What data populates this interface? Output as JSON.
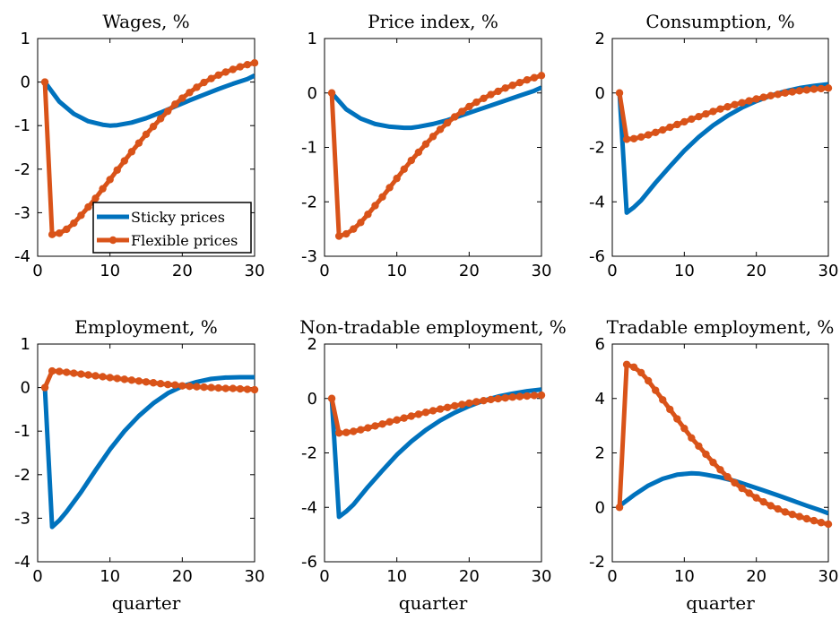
{
  "colors": {
    "sticky": "#0072BD",
    "flexible": "#D95319",
    "axis": "#000000"
  },
  "legend": {
    "panel": 0,
    "placement": "bottom-right",
    "entries": [
      "Sticky prices",
      "Flexible prices"
    ]
  },
  "chart_data": [
    {
      "type": "line",
      "title": "Wages, %",
      "xlabel": "",
      "xlim": [
        0,
        30
      ],
      "ylim": [
        -4,
        1
      ],
      "xticks": [
        0,
        10,
        20,
        30
      ],
      "yticks": [
        -4,
        -3,
        -2,
        -1,
        0,
        1
      ],
      "series": [
        {
          "name": "Sticky prices",
          "x": [
            1,
            3,
            5,
            7,
            9,
            10,
            11,
            13,
            15,
            17,
            19,
            21,
            23,
            25,
            27,
            29,
            30
          ],
          "y": [
            0,
            -0.45,
            -0.73,
            -0.9,
            -0.98,
            -1.0,
            -0.99,
            -0.93,
            -0.83,
            -0.7,
            -0.56,
            -0.42,
            -0.29,
            -0.16,
            -0.04,
            0.07,
            0.15
          ]
        },
        {
          "name": "Flexible prices",
          "x": [
            1,
            2,
            3,
            4,
            5,
            6,
            7,
            8,
            9,
            10,
            11,
            12,
            13,
            14,
            15,
            16,
            17,
            18,
            19,
            20,
            21,
            22,
            23,
            24,
            25,
            26,
            27,
            28,
            29,
            30
          ],
          "y": [
            0,
            -3.5,
            -3.47,
            -3.38,
            -3.24,
            -3.06,
            -2.87,
            -2.67,
            -2.45,
            -2.24,
            -2.02,
            -1.81,
            -1.6,
            -1.4,
            -1.2,
            -1.02,
            -0.84,
            -0.67,
            -0.51,
            -0.37,
            -0.24,
            -0.12,
            -0.01,
            0.08,
            0.16,
            0.23,
            0.29,
            0.35,
            0.4,
            0.44
          ]
        }
      ]
    },
    {
      "type": "line",
      "title": "Price index, %",
      "xlabel": "",
      "xlim": [
        0,
        30
      ],
      "ylim": [
        -3,
        1
      ],
      "xticks": [
        0,
        10,
        20,
        30
      ],
      "yticks": [
        -3,
        -2,
        -1,
        0,
        1
      ],
      "series": [
        {
          "name": "Sticky prices",
          "x": [
            1,
            3,
            5,
            7,
            9,
            11,
            12,
            13,
            15,
            17,
            19,
            21,
            23,
            25,
            27,
            29,
            30
          ],
          "y": [
            0,
            -0.3,
            -0.47,
            -0.57,
            -0.62,
            -0.64,
            -0.64,
            -0.62,
            -0.57,
            -0.5,
            -0.41,
            -0.32,
            -0.23,
            -0.14,
            -0.05,
            0.04,
            0.1
          ]
        },
        {
          "name": "Flexible prices",
          "x": [
            1,
            2,
            3,
            4,
            5,
            6,
            7,
            8,
            9,
            10,
            11,
            12,
            13,
            14,
            15,
            16,
            17,
            18,
            19,
            20,
            21,
            22,
            23,
            24,
            25,
            26,
            27,
            28,
            29,
            30
          ],
          "y": [
            0,
            -2.63,
            -2.59,
            -2.5,
            -2.38,
            -2.23,
            -2.07,
            -1.91,
            -1.74,
            -1.57,
            -1.4,
            -1.24,
            -1.09,
            -0.94,
            -0.8,
            -0.67,
            -0.55,
            -0.44,
            -0.34,
            -0.25,
            -0.17,
            -0.1,
            -0.03,
            0.03,
            0.09,
            0.14,
            0.19,
            0.24,
            0.28,
            0.32
          ]
        }
      ]
    },
    {
      "type": "line",
      "title": "Consumption, %",
      "xlabel": "",
      "xlim": [
        0,
        30
      ],
      "ylim": [
        -6,
        2
      ],
      "xticks": [
        0,
        10,
        20,
        30
      ],
      "yticks": [
        -6,
        -4,
        -2,
        0,
        2
      ],
      "series": [
        {
          "name": "Sticky prices",
          "x": [
            1,
            2,
            3,
            4,
            6,
            8,
            10,
            12,
            14,
            16,
            18,
            20,
            22,
            24,
            26,
            28,
            30
          ],
          "y": [
            0,
            -4.4,
            -4.2,
            -3.95,
            -3.3,
            -2.7,
            -2.12,
            -1.62,
            -1.19,
            -0.84,
            -0.54,
            -0.3,
            -0.1,
            0.06,
            0.18,
            0.26,
            0.32
          ]
        },
        {
          "name": "Flexible prices",
          "x": [
            1,
            2,
            3,
            4,
            5,
            6,
            7,
            8,
            9,
            10,
            11,
            12,
            13,
            14,
            15,
            16,
            17,
            18,
            19,
            20,
            21,
            22,
            23,
            24,
            25,
            26,
            27,
            28,
            29,
            30
          ],
          "y": [
            0,
            -1.7,
            -1.68,
            -1.62,
            -1.54,
            -1.45,
            -1.36,
            -1.26,
            -1.16,
            -1.06,
            -0.96,
            -0.87,
            -0.77,
            -0.68,
            -0.59,
            -0.51,
            -0.43,
            -0.36,
            -0.29,
            -0.22,
            -0.16,
            -0.1,
            -0.05,
            0.0,
            0.04,
            0.08,
            0.11,
            0.14,
            0.16,
            0.18
          ]
        }
      ]
    },
    {
      "type": "line",
      "title": "Employment, %",
      "xlabel": "quarter",
      "xlim": [
        0,
        30
      ],
      "ylim": [
        -4,
        1
      ],
      "xticks": [
        0,
        10,
        20,
        30
      ],
      "yticks": [
        -4,
        -3,
        -2,
        -1,
        0,
        1
      ],
      "series": [
        {
          "name": "Sticky prices",
          "x": [
            1,
            2,
            3,
            4,
            6,
            8,
            10,
            12,
            14,
            16,
            18,
            20,
            22,
            24,
            26,
            28,
            30
          ],
          "y": [
            0,
            -3.2,
            -3.05,
            -2.85,
            -2.4,
            -1.9,
            -1.42,
            -1.0,
            -0.65,
            -0.36,
            -0.13,
            0.03,
            0.13,
            0.2,
            0.23,
            0.24,
            0.24
          ]
        },
        {
          "name": "Flexible prices",
          "x": [
            1,
            2,
            3,
            4,
            5,
            6,
            7,
            8,
            9,
            10,
            11,
            12,
            13,
            14,
            15,
            16,
            17,
            18,
            19,
            20,
            21,
            22,
            23,
            24,
            25,
            26,
            27,
            28,
            29,
            30
          ],
          "y": [
            0,
            0.38,
            0.37,
            0.35,
            0.33,
            0.31,
            0.29,
            0.27,
            0.25,
            0.23,
            0.21,
            0.19,
            0.17,
            0.15,
            0.13,
            0.11,
            0.09,
            0.07,
            0.06,
            0.04,
            0.03,
            0.02,
            0.01,
            0.0,
            -0.01,
            -0.02,
            -0.02,
            -0.03,
            -0.04,
            -0.05
          ]
        }
      ]
    },
    {
      "type": "line",
      "title": "Non-tradable employment, %",
      "xlabel": "quarter",
      "xlim": [
        0,
        30
      ],
      "ylim": [
        -6,
        2
      ],
      "xticks": [
        0,
        10,
        20,
        30
      ],
      "yticks": [
        -6,
        -4,
        -2,
        0,
        2
      ],
      "series": [
        {
          "name": "Sticky prices",
          "x": [
            1,
            2,
            3,
            4,
            6,
            8,
            10,
            12,
            14,
            16,
            18,
            20,
            22,
            24,
            26,
            28,
            30
          ],
          "y": [
            0,
            -4.35,
            -4.15,
            -3.9,
            -3.25,
            -2.65,
            -2.07,
            -1.58,
            -1.16,
            -0.81,
            -0.52,
            -0.28,
            -0.08,
            0.07,
            0.18,
            0.27,
            0.33
          ]
        },
        {
          "name": "Flexible prices",
          "x": [
            1,
            2,
            3,
            4,
            5,
            6,
            7,
            8,
            9,
            10,
            11,
            12,
            13,
            14,
            15,
            16,
            17,
            18,
            19,
            20,
            21,
            22,
            23,
            24,
            25,
            26,
            27,
            28,
            29,
            30
          ],
          "y": [
            0,
            -1.27,
            -1.25,
            -1.21,
            -1.15,
            -1.08,
            -1.01,
            -0.94,
            -0.86,
            -0.79,
            -0.72,
            -0.65,
            -0.58,
            -0.51,
            -0.45,
            -0.39,
            -0.33,
            -0.27,
            -0.22,
            -0.17,
            -0.12,
            -0.08,
            -0.04,
            -0.01,
            0.02,
            0.05,
            0.07,
            0.09,
            0.11,
            0.12
          ]
        }
      ]
    },
    {
      "type": "line",
      "title": "Tradable employment, %",
      "xlabel": "quarter",
      "xlim": [
        0,
        30
      ],
      "ylim": [
        -2,
        6
      ],
      "xticks": [
        0,
        10,
        20,
        30
      ],
      "yticks": [
        -2,
        0,
        2,
        4,
        6
      ],
      "series": [
        {
          "name": "Sticky prices",
          "x": [
            1,
            3,
            5,
            7,
            9,
            11,
            12,
            13,
            15,
            17,
            19,
            21,
            23,
            25,
            27,
            29,
            30
          ],
          "y": [
            0.05,
            0.45,
            0.8,
            1.05,
            1.2,
            1.25,
            1.24,
            1.2,
            1.1,
            0.97,
            0.8,
            0.62,
            0.44,
            0.25,
            0.06,
            -0.12,
            -0.22
          ]
        },
        {
          "name": "Flexible prices",
          "x": [
            1,
            2,
            3,
            4,
            5,
            6,
            7,
            8,
            9,
            10,
            11,
            12,
            13,
            14,
            15,
            16,
            17,
            18,
            19,
            20,
            21,
            22,
            23,
            24,
            25,
            26,
            27,
            28,
            29,
            30
          ],
          "y": [
            0,
            5.25,
            5.15,
            4.95,
            4.65,
            4.3,
            3.95,
            3.6,
            3.25,
            2.9,
            2.55,
            2.25,
            1.95,
            1.65,
            1.38,
            1.12,
            0.9,
            0.7,
            0.52,
            0.35,
            0.2,
            0.06,
            -0.06,
            -0.17,
            -0.26,
            -0.34,
            -0.42,
            -0.49,
            -0.56,
            -0.62
          ]
        }
      ]
    }
  ]
}
